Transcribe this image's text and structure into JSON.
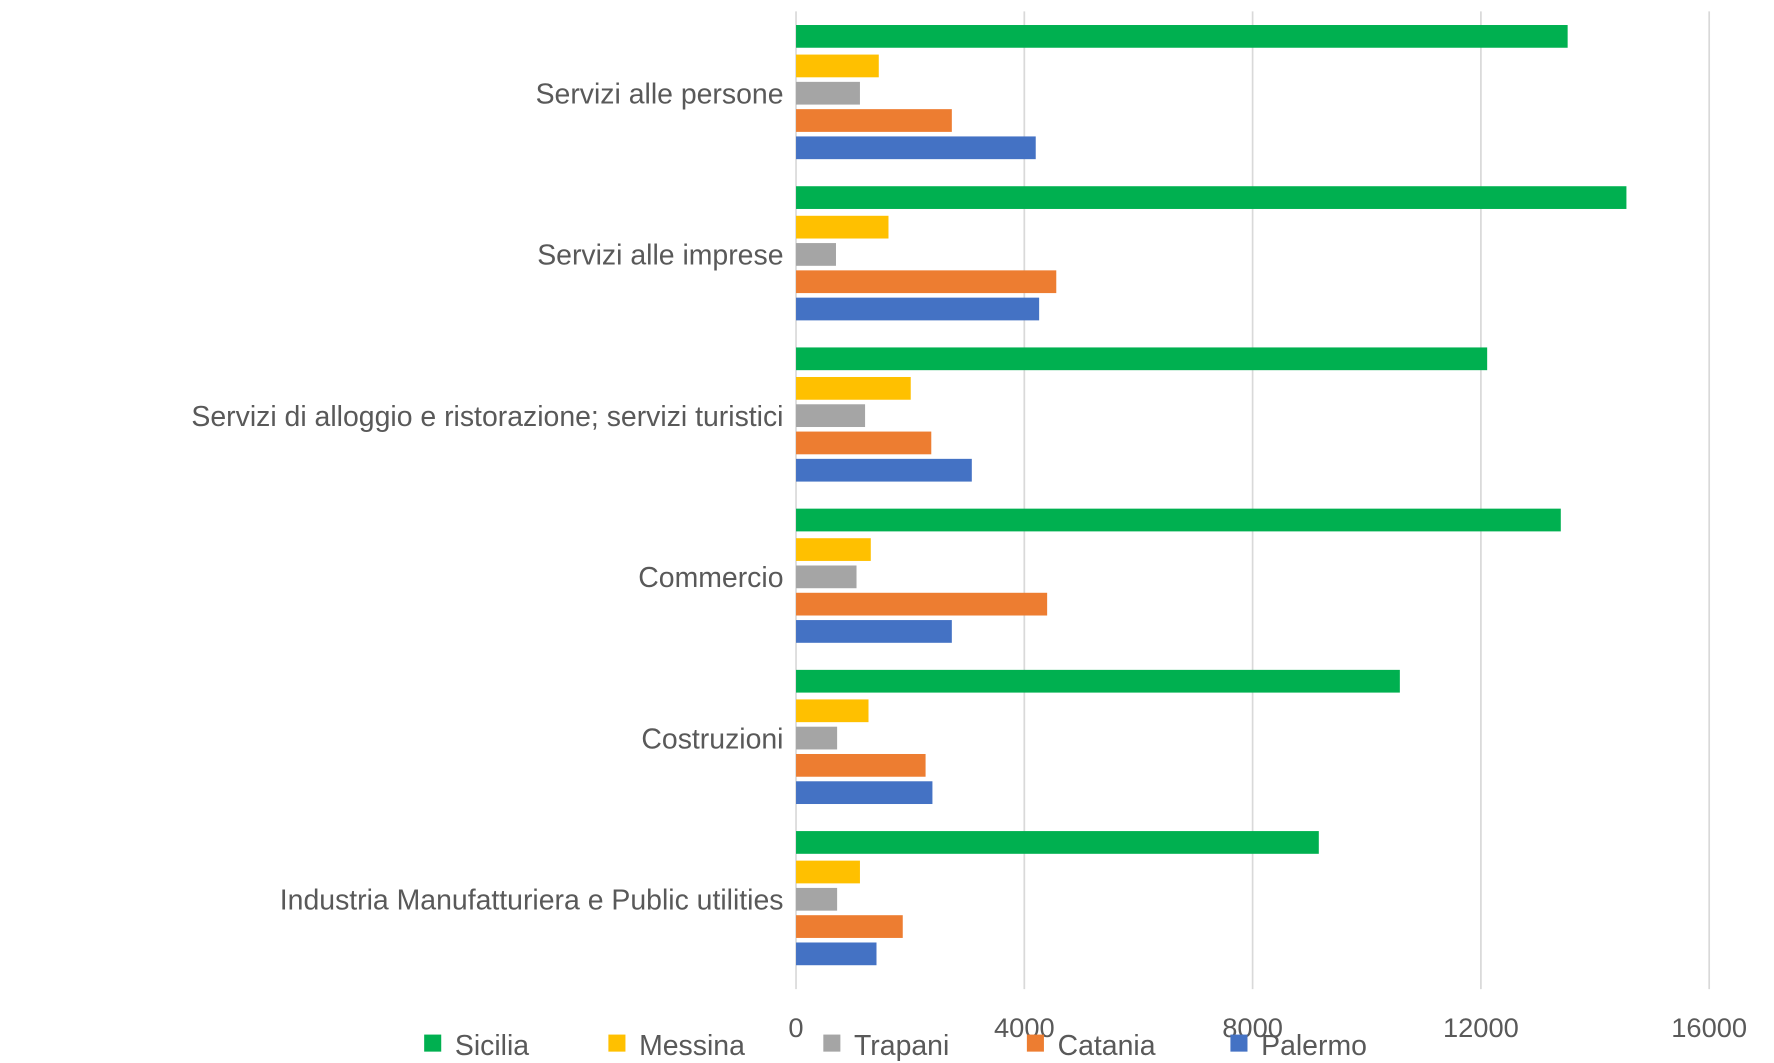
{
  "chart_data": {
    "type": "bar",
    "orientation": "horizontal",
    "title": "",
    "xlabel": "",
    "ylabel": "",
    "categories": [
      "Servizi alle persone",
      "Servizi alle imprese",
      "Servizi di alloggio e ristorazione; servizi turistici",
      "Commercio",
      "Costruzioni",
      "Industria Manufatturiera e Public utilities"
    ],
    "series": [
      {
        "name": "Sicilia",
        "color": "#00B050",
        "values": [
          13520,
          14550,
          12110,
          13400,
          10580,
          9160
        ]
      },
      {
        "name": "Messina",
        "color": "#FFC000",
        "values": [
          1450,
          1620,
          2010,
          1310,
          1270,
          1120
        ]
      },
      {
        "name": "Trapani",
        "color": "#A5A5A5",
        "values": [
          1120,
          700,
          1210,
          1060,
          720,
          720
        ]
      },
      {
        "name": "Catania",
        "color": "#ED7D31",
        "values": [
          2730,
          4560,
          2370,
          4400,
          2270,
          1870
        ]
      },
      {
        "name": "Palermo",
        "color": "#4472C4",
        "values": [
          4200,
          4260,
          3080,
          2730,
          2390,
          1410
        ]
      }
    ],
    "xlim": [
      0,
      16000
    ],
    "xticks": [
      "0",
      "4000",
      "8000",
      "12000",
      "16000"
    ],
    "grid": true,
    "legend_position": "bottom"
  }
}
